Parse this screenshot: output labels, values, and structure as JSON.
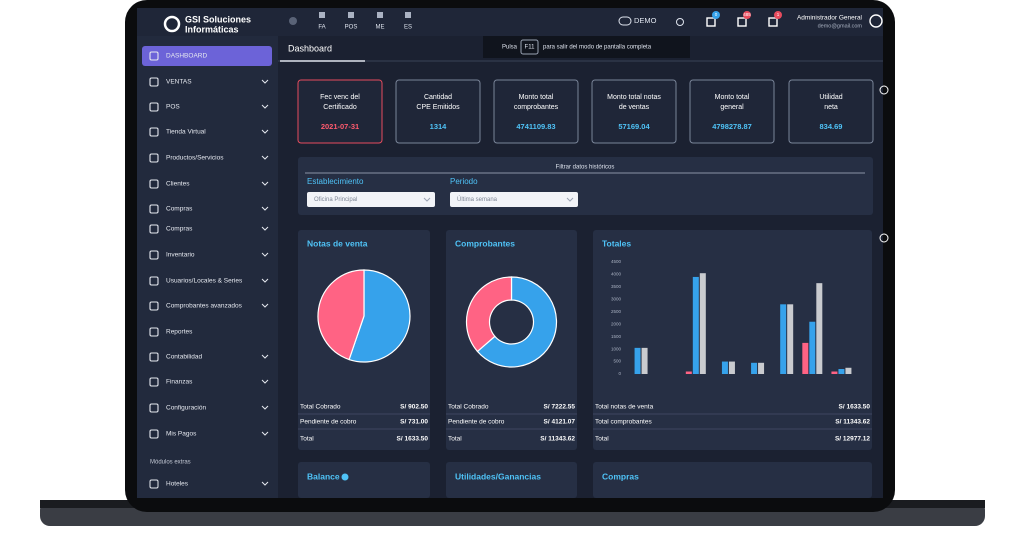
{
  "brand": [
    "GSI Soluciones",
    "Informáticas"
  ],
  "topbar": {
    "shortcuts": [
      "FA",
      "POS",
      "ME",
      "ES"
    ],
    "demo": "DEMO",
    "badges": [
      "0",
      "485",
      "1"
    ],
    "user": "Administrador General",
    "email": "demo@gmail.com"
  },
  "notice": {
    "pre": "Pulsa",
    "key": "F11",
    "post": "para salir del modo de pantalla completa"
  },
  "sidebar": {
    "items": [
      "DASHBOARD",
      "VENTAS",
      "POS",
      "Tienda Virtual",
      "Productos/Servicios",
      "Clientes",
      "Compras",
      "Compras",
      "Inventario",
      "Usuarios/Locales & Series",
      "Comprobantes avanzados",
      "Reportes",
      "Contabilidad",
      "Finanzas",
      "Configuración",
      "Mis Pagos"
    ],
    "section": "Módulos extras",
    "extra": [
      "Hoteles"
    ]
  },
  "page_title": "Dashboard",
  "stats": [
    {
      "label": [
        "Fec venc del",
        "Certificado"
      ],
      "value": "2021-07-31"
    },
    {
      "label": [
        "Cantidad",
        "CPE Emitidos"
      ],
      "value": "1314"
    },
    {
      "label": [
        "Monto total",
        "comprobantes"
      ],
      "value": "4741109.83"
    },
    {
      "label": [
        "Monto total notas",
        "de ventas"
      ],
      "value": "57169.04"
    },
    {
      "label": [
        "Monto total",
        "general"
      ],
      "value": "4798278.87"
    },
    {
      "label": [
        "Utilidad",
        "neta"
      ],
      "value": "834.69"
    }
  ],
  "filters": {
    "title": "Filtrar datos históricos",
    "fields": [
      {
        "label": "Establecimiento",
        "value": "Oficina Principal"
      },
      {
        "label": "Periodo",
        "value": "Última semana"
      }
    ]
  },
  "widgets": [
    {
      "title": "Notas de venta",
      "chart": {
        "type": "pie",
        "values": [
          902.5,
          731
        ],
        "colors": [
          "#36a2eb",
          "#ff6384"
        ]
      },
      "rows": [
        {
          "label": "Total Cobrado",
          "value": "S/ 902.50"
        },
        {
          "label": "Pendiente de cobro",
          "value": "S/ 731.00"
        },
        {
          "label": "Total",
          "value": "S/ 1633.50"
        }
      ]
    },
    {
      "title": "Comprobantes",
      "chart": {
        "type": "donut",
        "values": [
          7222.55,
          4121.07
        ],
        "colors": [
          "#36a2eb",
          "#ff6384"
        ]
      },
      "rows": [
        {
          "label": "Total Cobrado",
          "value": "S/ 7222.55"
        },
        {
          "label": "Pendiente de cobro",
          "value": "S/ 4121.07"
        },
        {
          "label": "Total",
          "value": "S/ 11343.62"
        }
      ]
    },
    {
      "title": "Totales",
      "chart": {
        "type": "bar",
        "ylim": [
          0,
          4500
        ],
        "yticks": [
          0,
          500,
          1000,
          1500,
          2000,
          2500,
          3000,
          3500,
          4000,
          4500
        ],
        "series": [
          {
            "color": "#36a2eb",
            "values": [
              1050,
              0,
              3900,
              500,
              450,
              2800,
              2100,
              200
            ]
          },
          {
            "color": "#c9cbcf",
            "values": [
              1050,
              0,
              4050,
              500,
              450,
              2800,
              3650,
              250
            ]
          },
          {
            "color": "#ff6384",
            "values": [
              0,
              0,
              100,
              0,
              0,
              0,
              1250,
              100
            ]
          }
        ]
      },
      "rows": [
        {
          "label": "Total notas de venta",
          "value": "S/ 1633.50"
        },
        {
          "label": "Total comprobantes",
          "value": "S/ 11343.62"
        },
        {
          "label": "Total",
          "value": "S/ 12977.12"
        }
      ]
    }
  ],
  "bottom": [
    "Balance",
    "Utilidades/Ganancias",
    "Compras"
  ]
}
